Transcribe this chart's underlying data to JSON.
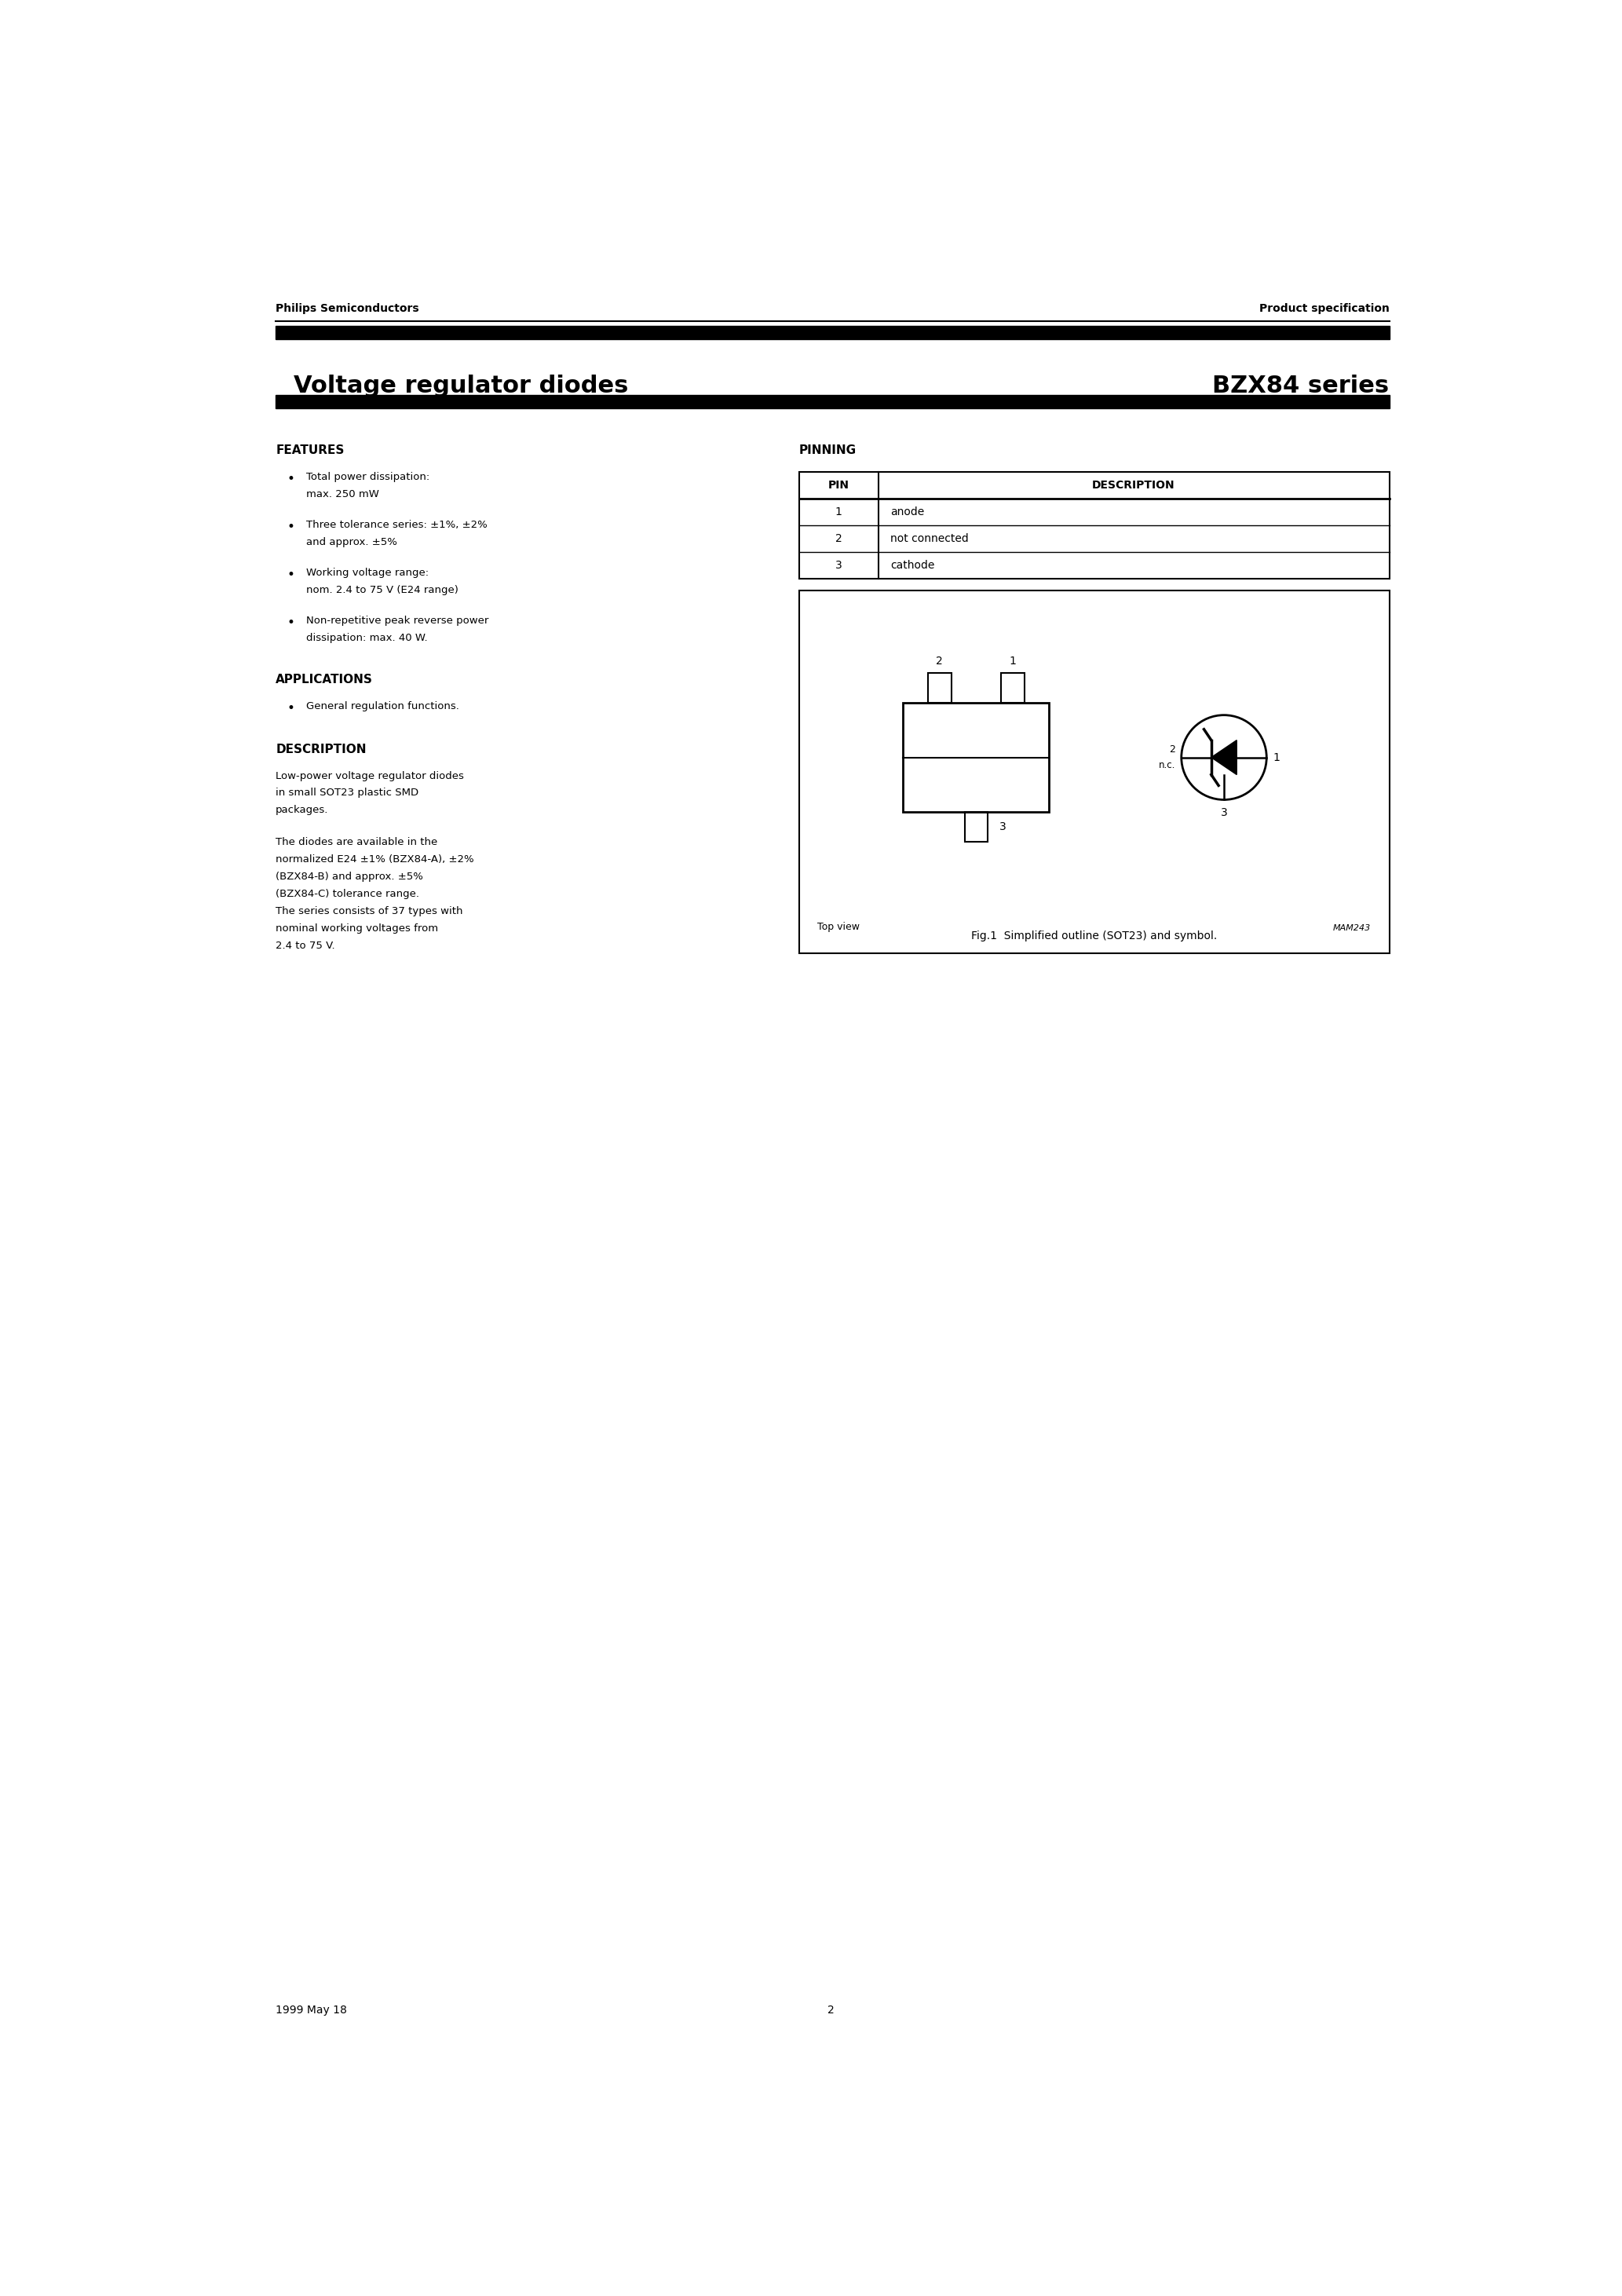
{
  "page_title_left": "Voltage regulator diodes",
  "page_title_right": "BZX84 series",
  "header_left": "Philips Semiconductors",
  "header_right": "Product specification",
  "thick_bar_color": "#000000",
  "features_title": "FEATURES",
  "features_bullets": [
    "Total power dissipation:\nmax. 250 mW",
    "Three tolerance series: ±1%, ±2%\nand approx. ±5%",
    "Working voltage range:\nnom. 2.4 to 75 V (E24 range)",
    "Non-repetitive peak reverse power\ndissipation: max. 40 W."
  ],
  "applications_title": "APPLICATIONS",
  "applications_bullets": [
    "General regulation functions."
  ],
  "description_title": "DESCRIPTION",
  "description_text1": "Low-power voltage regulator diodes\nin small SOT23 plastic SMD\npackages.",
  "description_text2": "The diodes are available in the\nnormalized E24 ±1% (BZX84-A), ±2%\n(BZX84-B) and approx. ±5%\n(BZX84-C) tolerance range.\nThe series consists of 37 types with\nnominal working voltages from\n2.4 to 75 V.",
  "pinning_title": "PINNING",
  "pin_table_headers": [
    "PIN",
    "DESCRIPTION"
  ],
  "pin_rows": [
    [
      "1",
      "anode"
    ],
    [
      "2",
      "not connected"
    ],
    [
      "3",
      "cathode"
    ]
  ],
  "fig_caption": "Fig.1  Simplified outline (SOT23) and symbol.",
  "top_view_label": "Top view",
  "mam_label": "MAM243",
  "footer_left": "1999 May 18",
  "footer_center": "2",
  "bg_color": "#ffffff",
  "text_color": "#000000",
  "bar_height": 0.22
}
